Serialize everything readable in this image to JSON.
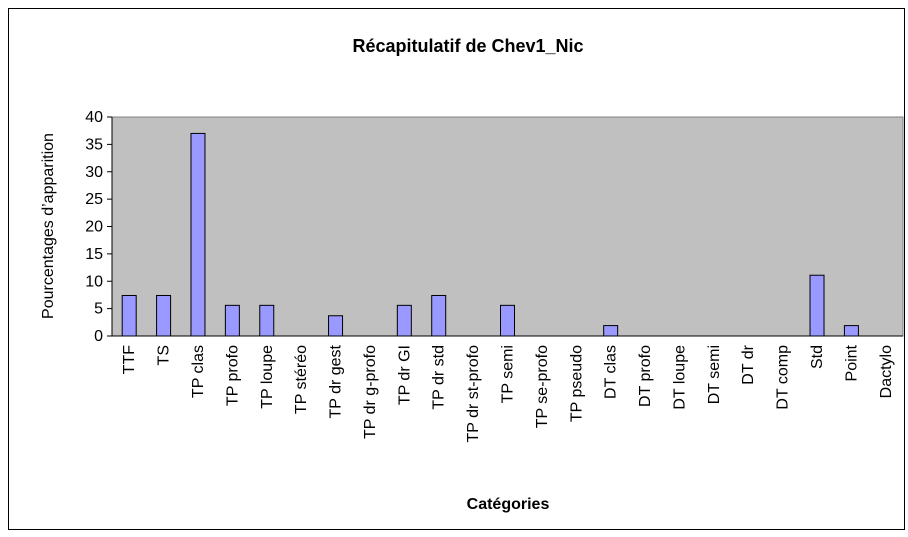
{
  "chart_data": {
    "type": "bar",
    "title": "Récapitulatif de Chev1_Nic",
    "x_label": "Catégories",
    "y_label": "Pourcentages d’apparition",
    "categories": [
      "TTF",
      "TS",
      "TP clas",
      "TP profo",
      "TP loupe",
      "TP stéréo",
      "TP dr gest",
      "TP dr g-profo",
      "TP dr GI",
      "TP dr std",
      "TP dr st-profo",
      "TP semi",
      "TP se-profo",
      "TP pseudo",
      "DT clas",
      "DT profo",
      "DT loupe",
      "DT semi",
      "DT dr",
      "DT comp",
      "Std",
      "Point",
      "Dactylo"
    ],
    "values": [
      7.4,
      7.4,
      37,
      5.6,
      5.6,
      0,
      3.7,
      0,
      5.6,
      7.4,
      0,
      5.6,
      0,
      0,
      1.9,
      0,
      0,
      0,
      0,
      0,
      11.1,
      1.9,
      0
    ],
    "color": "#9999ff",
    "ylim": [
      0,
      40
    ],
    "yticks": [
      0,
      5,
      10,
      15,
      20,
      25,
      30,
      35,
      40
    ],
    "grid": false
  }
}
